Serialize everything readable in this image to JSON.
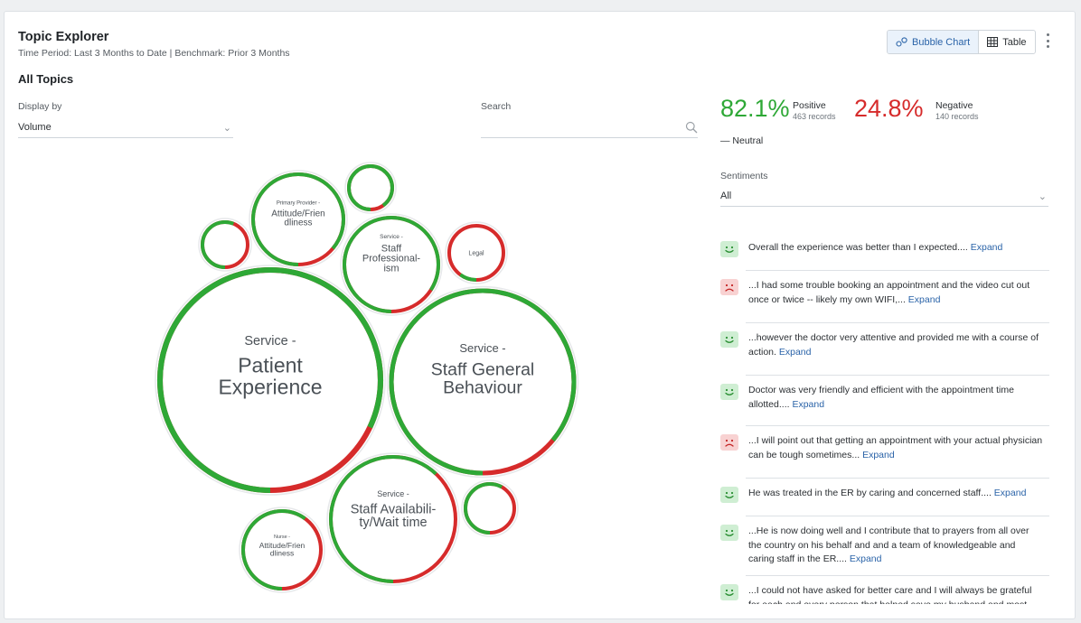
{
  "header": {
    "title": "Topic Explorer",
    "subtitle": "Time Period: Last 3 Months to Date | Benchmark: Prior 3 Months",
    "section": "All Topics"
  },
  "view_toggle": {
    "bubble_label": "Bubble Chart",
    "table_label": "Table",
    "active": "bubble"
  },
  "filters": {
    "display_by_label": "Display by",
    "display_by_value": "Volume",
    "search_label": "Search",
    "search_value": ""
  },
  "summary": {
    "positive_pct": "82.1%",
    "positive_label": "Positive",
    "positive_records": "463 records",
    "negative_pct": "24.8%",
    "negative_label": "Negative",
    "negative_records": "140 records",
    "neutral_label": "— Neutral",
    "sentiments_label": "Sentiments",
    "sentiments_value": "All"
  },
  "colors": {
    "positive": "#2ea836",
    "negative": "#d62b2b",
    "link": "#2a63a8"
  },
  "bubbles": [
    {
      "category": "Service -",
      "name": [
        "Patient",
        "Experience"
      ],
      "positive_fraction": 0.82
    },
    {
      "category": "Service -",
      "name": [
        "Staff General",
        "Behaviour"
      ],
      "positive_fraction": 0.86
    },
    {
      "category": "Service -",
      "name": [
        "Staff Availabili-",
        "ty/Wait time"
      ],
      "positive_fraction": 0.62
    },
    {
      "category": "Service -",
      "name": [
        "Staff",
        "Professional-",
        "ism"
      ],
      "positive_fraction": 0.84
    },
    {
      "category": "Primary Provider -",
      "name": [
        "Attitude/Frien",
        "dliness"
      ],
      "positive_fraction": 0.86
    },
    {
      "category": "Nurse -",
      "name": [
        "Attitude/Frien",
        "dliness"
      ],
      "positive_fraction": 0.6
    },
    {
      "category": "",
      "name": [
        "Legal"
      ],
      "positive_fraction": 0.1
    },
    {
      "category": "",
      "name": [],
      "positive_fraction": 0.9
    },
    {
      "category": "",
      "name": [],
      "positive_fraction": 0.56
    },
    {
      "category": "",
      "name": [],
      "positive_fraction": 0.58
    }
  ],
  "comments": [
    {
      "sentiment": "positive",
      "text": "Overall the experience was better than I expected....",
      "expand": "Expand"
    },
    {
      "sentiment": "negative",
      "text": "...I had some trouble booking an appointment and the video cut out once or twice -- likely my own WIFI,...",
      "expand": "Expand"
    },
    {
      "sentiment": "positive",
      "text": "...however the doctor very attentive and provided me with a course of action.",
      "expand": "Expand"
    },
    {
      "sentiment": "positive",
      "text": "Doctor was very friendly and efficient with the appointment time allotted....",
      "expand": "Expand"
    },
    {
      "sentiment": "negative",
      "text": "...I will point out that getting an appointment with your actual physician can be tough sometimes...",
      "expand": "Expand"
    },
    {
      "sentiment": "positive",
      "text": "He was treated in the ER by caring and concerned staff....",
      "expand": "Expand"
    },
    {
      "sentiment": "positive",
      "text": "...He is now doing well and I contribute that to prayers from all over the country on his behalf and and a team of knowledgeable and caring staff in the ER....",
      "expand": "Expand"
    },
    {
      "sentiment": "positive",
      "text": "...I could not have asked for better care and I will always be grateful for each and every person that helped save my husband and most",
      "expand": ""
    }
  ]
}
